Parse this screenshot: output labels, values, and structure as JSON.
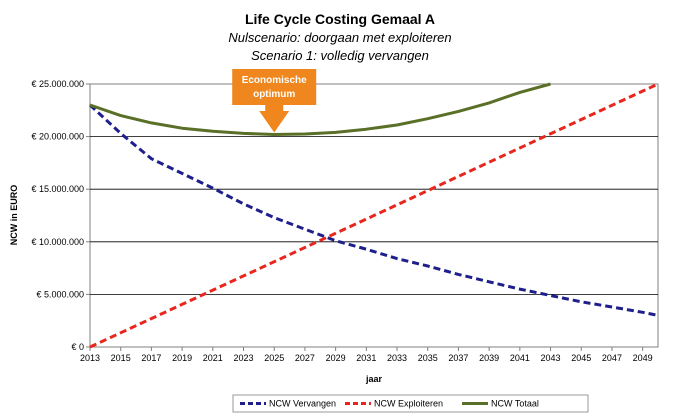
{
  "chart_data": {
    "type": "line",
    "title": "Life Cycle Costing Gemaal A",
    "subtitle_1": "Nulscenario: doorgaan met exploiteren",
    "subtitle_2": "Scenario 1: volledig vervangen",
    "xlabel": "jaar",
    "ylabel": "NCW in EURO",
    "xlim": [
      2013,
      2050
    ],
    "ylim": [
      0,
      25000000
    ],
    "x_ticks": [
      2013,
      2015,
      2017,
      2019,
      2021,
      2023,
      2025,
      2027,
      2029,
      2031,
      2033,
      2035,
      2037,
      2039,
      2041,
      2043,
      2045,
      2047,
      2049
    ],
    "y_ticks": [
      {
        "value": 0,
        "label": "€ 0"
      },
      {
        "value": 5000000,
        "label": "€ 5.000.000"
      },
      {
        "value": 10000000,
        "label": "€ 10.000.000"
      },
      {
        "value": 15000000,
        "label": "€ 15.000.000"
      },
      {
        "value": 20000000,
        "label": "€ 20.000.000"
      },
      {
        "value": 25000000,
        "label": "€ 25.000.000"
      }
    ],
    "grid": "horizontal",
    "legend_position": "bottom",
    "series": [
      {
        "name": "NCW Vervangen",
        "color": "#1F1F8C",
        "style": "dashed",
        "x": [
          2013,
          2015,
          2017,
          2019,
          2021,
          2023,
          2025,
          2027,
          2029,
          2031,
          2033,
          2035,
          2037,
          2039,
          2041,
          2043,
          2045,
          2047,
          2049,
          2050
        ],
        "values": [
          23000000,
          20300000,
          17900000,
          16500000,
          15100000,
          13600000,
          12300000,
          11200000,
          10100000,
          9300000,
          8400000,
          7700000,
          6900000,
          6200000,
          5500000,
          4900000,
          4300000,
          3800000,
          3300000,
          3000000
        ]
      },
      {
        "name": "NCW Exploiteren",
        "color": "#E8261E",
        "style": "dashed",
        "x": [
          2013,
          2050
        ],
        "values": [
          0,
          25000000
        ]
      },
      {
        "name": "NCW Totaal",
        "color": "#5A7028",
        "style": "solid",
        "x": [
          2013,
          2015,
          2017,
          2019,
          2021,
          2023,
          2025,
          2027,
          2029,
          2031,
          2033,
          2035,
          2037,
          2039,
          2041,
          2043
        ],
        "values": [
          23000000,
          22000000,
          21300000,
          20800000,
          20500000,
          20300000,
          20200000,
          20250000,
          20400000,
          20700000,
          21100000,
          21700000,
          22400000,
          23200000,
          24200000,
          25000000
        ]
      }
    ],
    "annotation": {
      "line1": "Economische",
      "line2": "optimum",
      "x": 2025,
      "y": 20200000,
      "color": "#F0861E"
    }
  }
}
